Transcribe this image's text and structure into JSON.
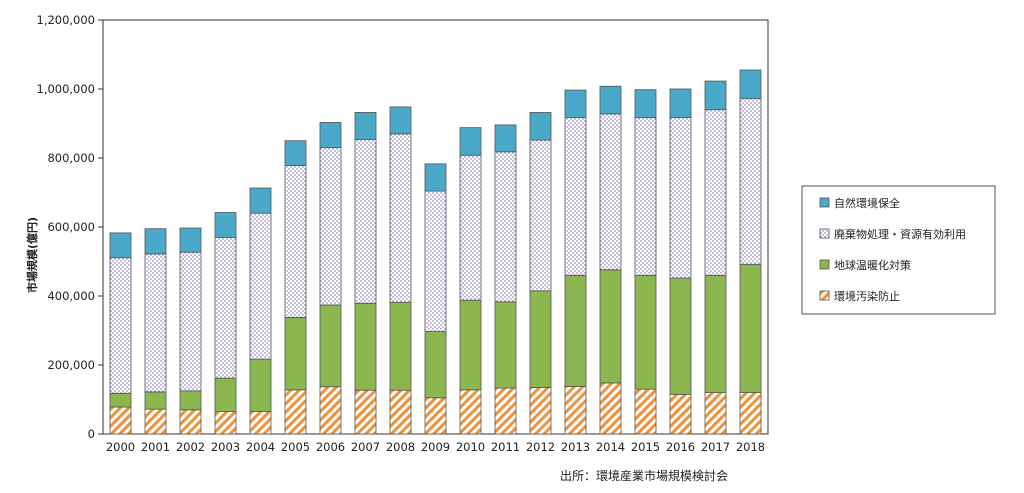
{
  "chart_data": {
    "type": "bar",
    "stacked": true,
    "title": "",
    "xlabel": "",
    "ylabel": "市場規模(億円)",
    "ylim": [
      0,
      1200000
    ],
    "yticks": [
      0,
      200000,
      400000,
      600000,
      800000,
      1000000,
      1200000
    ],
    "ytick_labels": [
      "0",
      "200,000",
      "400,000",
      "600,000",
      "800,000",
      "1,000,000",
      "1,200,000"
    ],
    "grid": false,
    "legend_position": "right",
    "categories": [
      "2000",
      "2001",
      "2002",
      "2003",
      "2004",
      "2005",
      "2006",
      "2007",
      "2008",
      "2009",
      "2010",
      "2011",
      "2012",
      "2013",
      "2014",
      "2015",
      "2016",
      "2017",
      "2018"
    ],
    "series": [
      {
        "name": "環境汚染防止",
        "color": "#f0913a",
        "pattern": "diagonal-hatch",
        "values": [
          78000,
          72000,
          70000,
          65000,
          65000,
          128000,
          137000,
          127000,
          127000,
          105000,
          128000,
          133000,
          135000,
          138000,
          148000,
          130000,
          115000,
          120000,
          120000
        ]
      },
      {
        "name": "地球温暖化対策",
        "color": "#8cb64f",
        "pattern": "solid",
        "values": [
          40000,
          50000,
          55000,
          97000,
          152000,
          210000,
          237000,
          252000,
          255000,
          192000,
          260000,
          250000,
          280000,
          322000,
          328000,
          330000,
          337000,
          340000,
          372000
        ]
      },
      {
        "name": "廃棄物処理・資源有効利用",
        "color": "#8a80b8",
        "pattern": "dotted",
        "values": [
          393000,
          400000,
          402000,
          408000,
          423000,
          440000,
          456000,
          475000,
          488000,
          407000,
          420000,
          435000,
          437000,
          457000,
          452000,
          457000,
          465000,
          480000,
          480000
        ]
      },
      {
        "name": "自然環境保全",
        "color": "#4aa8c8",
        "pattern": "solid",
        "values": [
          72000,
          73000,
          70000,
          72000,
          73000,
          72000,
          73000,
          78000,
          78000,
          79000,
          80000,
          78000,
          80000,
          80000,
          80000,
          81000,
          83000,
          83000,
          83000
        ]
      }
    ]
  },
  "legend": {
    "items": [
      "自然環境保全",
      "廃棄物処理・資源有効利用",
      "地球温暖化対策",
      "環境汚染防止"
    ]
  },
  "source": "出所：環境産業市場規模検討会"
}
